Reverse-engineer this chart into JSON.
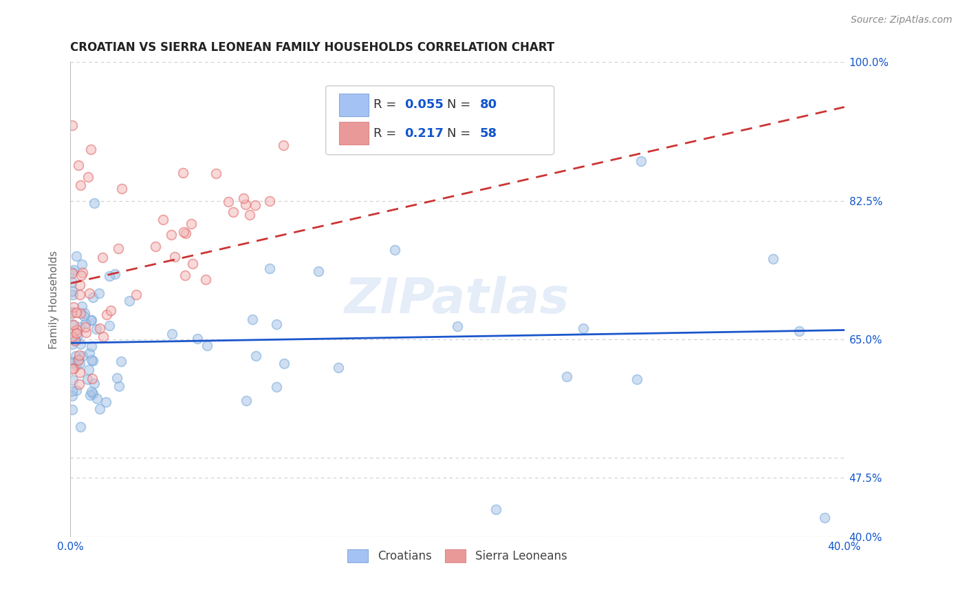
{
  "title": "CROATIAN VS SIERRA LEONEAN FAMILY HOUSEHOLDS CORRELATION CHART",
  "source": "Source: ZipAtlas.com",
  "ylabel": "Family Households",
  "xlim": [
    0.0,
    0.4
  ],
  "ylim": [
    0.4,
    1.0
  ],
  "ytick_positions": [
    0.4,
    0.475,
    0.5,
    0.65,
    0.825,
    1.0
  ],
  "ytick_labels_right": [
    "40.0%",
    "47.5%",
    "",
    "65.0%",
    "82.5%",
    "100.0%"
  ],
  "xtick_positions": [
    0.0,
    0.05,
    0.1,
    0.15,
    0.2,
    0.25,
    0.3,
    0.35,
    0.4
  ],
  "xtick_labels": [
    "0.0%",
    "",
    "",
    "",
    "",
    "",
    "",
    "",
    "40.0%"
  ],
  "R_croatian": 0.055,
  "N_croatian": 80,
  "R_sierraleonean": 0.217,
  "N_sierraleonean": 58,
  "blue_fill": "#aac4e8",
  "blue_edge": "#6fa8dc",
  "pink_fill": "#f4b8b8",
  "pink_edge": "#e06060",
  "blue_line_color": "#1a56cc",
  "pink_line_color": "#cc3333",
  "legend_blue_fill": "#a4c2f4",
  "legend_pink_fill": "#ea9999",
  "title_color": "#222222",
  "axis_label_color": "#1155cc",
  "tick_label_color": "#1155cc",
  "watermark_color": "#c5d9f0",
  "background_color": "#ffffff",
  "grid_color": "#cccccc",
  "marker_size": 100,
  "marker_alpha": 0.55,
  "line_width": 2.0,
  "legend_text_color": "#1155cc",
  "legend_R_black": "#333333"
}
